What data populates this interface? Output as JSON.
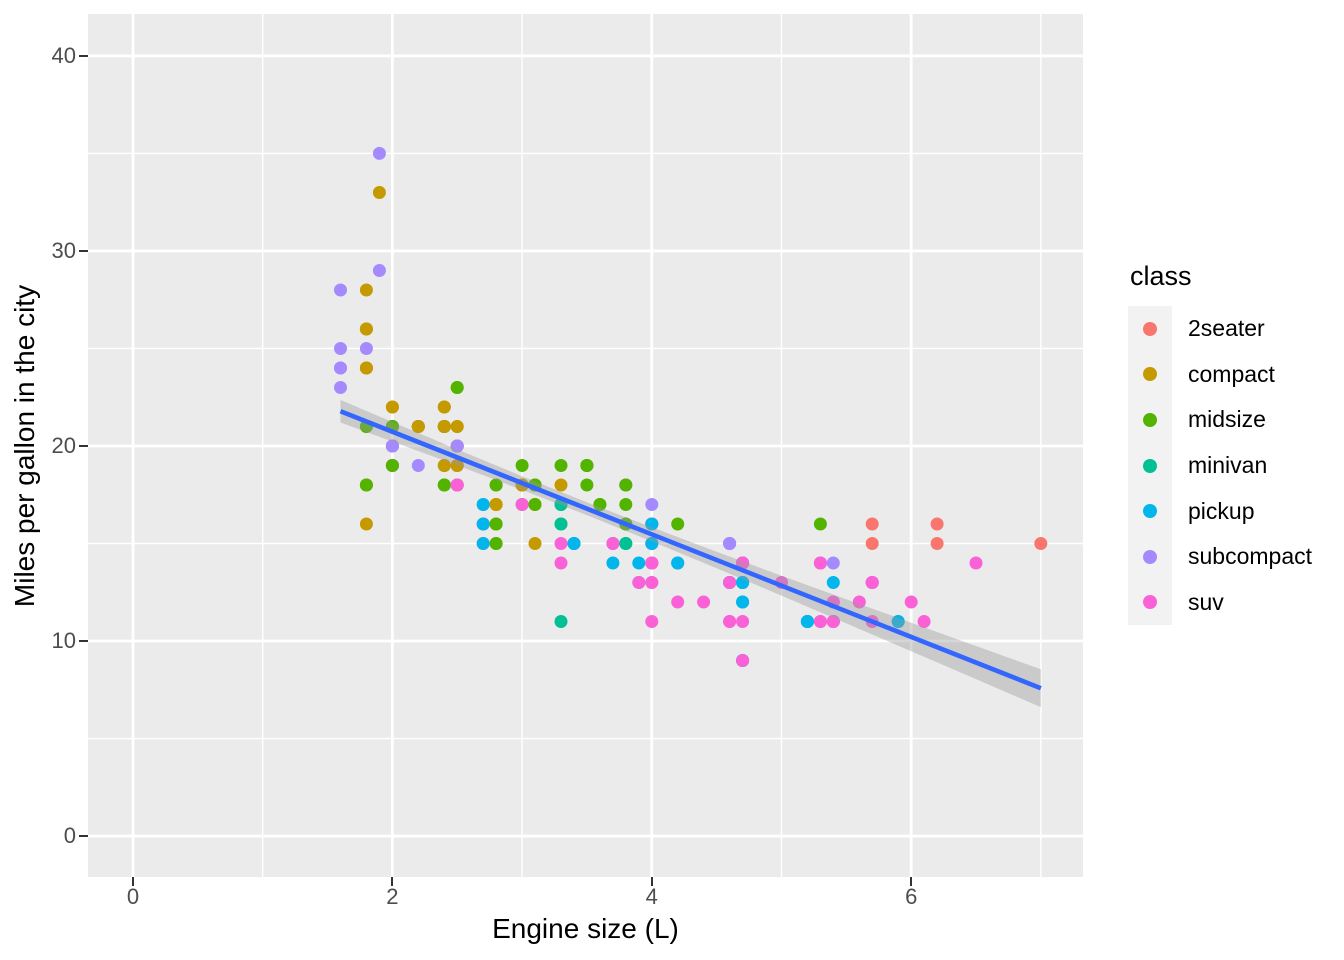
{
  "x_axis": {
    "title": "Engine size (L)",
    "ticks": [
      0,
      2,
      4,
      6
    ],
    "minor": [
      1,
      3,
      5,
      7
    ]
  },
  "y_axis": {
    "title": "Miles per gallon in the city",
    "ticks": [
      0,
      10,
      20,
      30,
      40
    ],
    "minor": [
      5,
      15,
      25,
      35
    ]
  },
  "legend": {
    "title": "class",
    "items": [
      {
        "label": "2seater",
        "color": "#F8766D"
      },
      {
        "label": "compact",
        "color": "#C49A00"
      },
      {
        "label": "midsize",
        "color": "#53B400"
      },
      {
        "label": "minivan",
        "color": "#00C094"
      },
      {
        "label": "pickup",
        "color": "#00B6EB"
      },
      {
        "label": "subcompact",
        "color": "#A58AFF"
      },
      {
        "label": "suv",
        "color": "#FB61D7"
      }
    ]
  },
  "style_colors": {
    "panel_bg": "#EBEBEB",
    "grid": "#FFFFFF",
    "axis_text": "#4D4D4D",
    "tick_mark": "#333333",
    "legend_key_bg": "#F2F2F2",
    "smooth_line": "#3366FF",
    "ribbon": "#999999"
  },
  "chart_data": {
    "type": "scatter",
    "title": "",
    "xlabel": "Engine size (L)",
    "ylabel": "Miles per gallon in the city",
    "x_field": "engine displacement (litres)",
    "y_field": "city miles per gallon",
    "color_field": "class",
    "xlim": [
      -0.347,
      7.325
    ],
    "ylim": [
      -2.1,
      42.15
    ],
    "grid": true,
    "legend_position": "right",
    "classes": [
      "2seater",
      "compact",
      "midsize",
      "minivan",
      "pickup",
      "subcompact",
      "suv"
    ],
    "colors": [
      "#F8766D",
      "#C49A00",
      "#53B400",
      "#00C094",
      "#00B6EB",
      "#A58AFF",
      "#FB61D7"
    ],
    "point_format": "[displ, cty, class_index] in dataset draw order",
    "points": [
      [
        1.8,
        18,
        1
      ],
      [
        1.8,
        21,
        1
      ],
      [
        2.0,
        20,
        1
      ],
      [
        2.0,
        21,
        1
      ],
      [
        2.8,
        16,
        1
      ],
      [
        2.8,
        18,
        1
      ],
      [
        3.1,
        18,
        1
      ],
      [
        1.8,
        18,
        1
      ],
      [
        1.8,
        16,
        1
      ],
      [
        2.0,
        20,
        1
      ],
      [
        2.0,
        19,
        1
      ],
      [
        2.8,
        15,
        1
      ],
      [
        2.8,
        17,
        1
      ],
      [
        3.1,
        17,
        1
      ],
      [
        3.1,
        15,
        1
      ],
      [
        2.8,
        15,
        2
      ],
      [
        3.1,
        17,
        2
      ],
      [
        4.2,
        16,
        2
      ],
      [
        5.3,
        14,
        6
      ],
      [
        5.3,
        11,
        6
      ],
      [
        5.3,
        14,
        6
      ],
      [
        5.7,
        13,
        6
      ],
      [
        6.0,
        12,
        6
      ],
      [
        5.7,
        16,
        0
      ],
      [
        5.7,
        15,
        0
      ],
      [
        6.2,
        16,
        0
      ],
      [
        6.2,
        15,
        0
      ],
      [
        7.0,
        15,
        0
      ],
      [
        5.3,
        14,
        6
      ],
      [
        5.3,
        11,
        6
      ],
      [
        5.7,
        11,
        6
      ],
      [
        6.5,
        14,
        6
      ],
      [
        2.4,
        19,
        2
      ],
      [
        2.4,
        22,
        2
      ],
      [
        3.1,
        18,
        2
      ],
      [
        3.5,
        18,
        2
      ],
      [
        3.6,
        17,
        2
      ],
      [
        2.4,
        18,
        3
      ],
      [
        3.0,
        17,
        3
      ],
      [
        3.3,
        16,
        3
      ],
      [
        3.3,
        16,
        3
      ],
      [
        3.3,
        17,
        3
      ],
      [
        3.3,
        17,
        3
      ],
      [
        3.3,
        11,
        3
      ],
      [
        3.8,
        15,
        3
      ],
      [
        3.8,
        15,
        3
      ],
      [
        3.8,
        16,
        3
      ],
      [
        4.0,
        16,
        3
      ],
      [
        3.7,
        15,
        4
      ],
      [
        3.7,
        14,
        4
      ],
      [
        3.9,
        13,
        4
      ],
      [
        3.9,
        14,
        4
      ],
      [
        4.7,
        14,
        4
      ],
      [
        4.7,
        14,
        4
      ],
      [
        4.7,
        9,
        4
      ],
      [
        5.2,
        11,
        4
      ],
      [
        5.2,
        11,
        4
      ],
      [
        3.9,
        13,
        6
      ],
      [
        4.7,
        13,
        6
      ],
      [
        4.7,
        9,
        6
      ],
      [
        4.7,
        13,
        6
      ],
      [
        5.2,
        11,
        6
      ],
      [
        5.7,
        13,
        6
      ],
      [
        5.9,
        11,
        6
      ],
      [
        4.7,
        12,
        4
      ],
      [
        4.7,
        9,
        4
      ],
      [
        4.7,
        13,
        4
      ],
      [
        4.7,
        13,
        4
      ],
      [
        4.7,
        12,
        4
      ],
      [
        4.7,
        13,
        4
      ],
      [
        5.2,
        11,
        4
      ],
      [
        5.2,
        11,
        4
      ],
      [
        5.7,
        13,
        4
      ],
      [
        5.9,
        11,
        4
      ],
      [
        4.6,
        11,
        6
      ],
      [
        5.4,
        11,
        6
      ],
      [
        5.4,
        12,
        6
      ],
      [
        4.0,
        14,
        6
      ],
      [
        4.0,
        15,
        6
      ],
      [
        4.0,
        14,
        6
      ],
      [
        4.0,
        13,
        6
      ],
      [
        4.6,
        13,
        6
      ],
      [
        4.0,
        14,
        6
      ],
      [
        4.2,
        14,
        4
      ],
      [
        4.2,
        14,
        4
      ],
      [
        4.6,
        13,
        4
      ],
      [
        4.6,
        13,
        4
      ],
      [
        4.6,
        13,
        4
      ],
      [
        5.4,
        11,
        4
      ],
      [
        5.4,
        13,
        4
      ],
      [
        3.8,
        18,
        5
      ],
      [
        3.8,
        18,
        5
      ],
      [
        4.0,
        17,
        5
      ],
      [
        4.0,
        16,
        5
      ],
      [
        4.6,
        15,
        5
      ],
      [
        4.6,
        15,
        5
      ],
      [
        4.6,
        15,
        5
      ],
      [
        4.6,
        15,
        5
      ],
      [
        5.4,
        14,
        5
      ],
      [
        1.6,
        28,
        5
      ],
      [
        1.6,
        24,
        5
      ],
      [
        1.6,
        25,
        5
      ],
      [
        1.6,
        23,
        5
      ],
      [
        1.6,
        24,
        5
      ],
      [
        1.8,
        26,
        5
      ],
      [
        1.8,
        25,
        5
      ],
      [
        1.8,
        24,
        5
      ],
      [
        2.0,
        21,
        5
      ],
      [
        2.4,
        18,
        2
      ],
      [
        2.4,
        18,
        2
      ],
      [
        2.4,
        21,
        2
      ],
      [
        2.4,
        21,
        2
      ],
      [
        2.5,
        18,
        2
      ],
      [
        2.5,
        18,
        2
      ],
      [
        3.3,
        19,
        2
      ],
      [
        2.0,
        19,
        5
      ],
      [
        2.0,
        19,
        5
      ],
      [
        2.0,
        20,
        5
      ],
      [
        2.0,
        20,
        5
      ],
      [
        2.0,
        20,
        5
      ],
      [
        2.7,
        17,
        5
      ],
      [
        2.7,
        16,
        5
      ],
      [
        3.0,
        17,
        6
      ],
      [
        3.7,
        15,
        6
      ],
      [
        4.0,
        15,
        6
      ],
      [
        4.7,
        14,
        6
      ],
      [
        4.7,
        9,
        6
      ],
      [
        4.7,
        14,
        6
      ],
      [
        5.7,
        13,
        6
      ],
      [
        6.1,
        11,
        6
      ],
      [
        4.0,
        11,
        6
      ],
      [
        4.2,
        12,
        6
      ],
      [
        4.4,
        12,
        6
      ],
      [
        4.6,
        11,
        6
      ],
      [
        5.4,
        11,
        6
      ],
      [
        5.4,
        11,
        6
      ],
      [
        5.4,
        12,
        6
      ],
      [
        4.0,
        14,
        6
      ],
      [
        4.0,
        13,
        6
      ],
      [
        4.6,
        13,
        6
      ],
      [
        5.0,
        13,
        6
      ],
      [
        2.4,
        21,
        1
      ],
      [
        2.4,
        19,
        1
      ],
      [
        2.5,
        23,
        2
      ],
      [
        2.5,
        23,
        2
      ],
      [
        3.5,
        19,
        2
      ],
      [
        3.5,
        19,
        2
      ],
      [
        3.0,
        18,
        2
      ],
      [
        3.0,
        19,
        2
      ],
      [
        3.5,
        19,
        2
      ],
      [
        3.3,
        14,
        6
      ],
      [
        3.3,
        15,
        6
      ],
      [
        4.0,
        14,
        6
      ],
      [
        5.6,
        12,
        6
      ],
      [
        3.1,
        18,
        2
      ],
      [
        3.8,
        16,
        2
      ],
      [
        3.8,
        17,
        2
      ],
      [
        3.8,
        18,
        2
      ],
      [
        5.3,
        16,
        2
      ],
      [
        2.5,
        18,
        6
      ],
      [
        2.5,
        18,
        6
      ],
      [
        2.5,
        20,
        6
      ],
      [
        2.5,
        19,
        6
      ],
      [
        2.5,
        18,
        6
      ],
      [
        2.5,
        18,
        6
      ],
      [
        2.2,
        21,
        5
      ],
      [
        2.2,
        19,
        5
      ],
      [
        2.5,
        19,
        5
      ],
      [
        2.5,
        19,
        5
      ],
      [
        2.5,
        20,
        1
      ],
      [
        2.5,
        20,
        1
      ],
      [
        2.5,
        19,
        1
      ],
      [
        2.5,
        20,
        1
      ],
      [
        2.7,
        15,
        6
      ],
      [
        2.7,
        16,
        6
      ],
      [
        3.4,
        15,
        6
      ],
      [
        3.4,
        15,
        6
      ],
      [
        4.0,
        16,
        6
      ],
      [
        4.7,
        14,
        6
      ],
      [
        2.2,
        21,
        2
      ],
      [
        2.2,
        21,
        2
      ],
      [
        2.4,
        21,
        2
      ],
      [
        2.4,
        21,
        2
      ],
      [
        3.0,
        18,
        2
      ],
      [
        3.0,
        18,
        2
      ],
      [
        3.5,
        19,
        2
      ],
      [
        2.2,
        21,
        1
      ],
      [
        2.2,
        21,
        1
      ],
      [
        2.4,
        21,
        1
      ],
      [
        2.4,
        22,
        1
      ],
      [
        3.0,
        18,
        1
      ],
      [
        3.0,
        18,
        1
      ],
      [
        3.3,
        18,
        1
      ],
      [
        1.8,
        24,
        1
      ],
      [
        1.8,
        24,
        1
      ],
      [
        1.8,
        26,
        1
      ],
      [
        1.8,
        28,
        1
      ],
      [
        1.8,
        26,
        1
      ],
      [
        4.7,
        11,
        6
      ],
      [
        5.7,
        13,
        6
      ],
      [
        2.7,
        15,
        4
      ],
      [
        2.7,
        16,
        4
      ],
      [
        2.7,
        17,
        4
      ],
      [
        3.4,
        15,
        4
      ],
      [
        3.4,
        15,
        4
      ],
      [
        4.0,
        15,
        4
      ],
      [
        4.0,
        16,
        4
      ],
      [
        2.0,
        21,
        1
      ],
      [
        2.0,
        19,
        1
      ],
      [
        2.0,
        21,
        1
      ],
      [
        2.0,
        22,
        1
      ],
      [
        2.8,
        17,
        1
      ],
      [
        1.9,
        33,
        1
      ],
      [
        2.0,
        21,
        1
      ],
      [
        2.0,
        19,
        1
      ],
      [
        2.0,
        22,
        1
      ],
      [
        2.0,
        21,
        1
      ],
      [
        2.5,
        21,
        1
      ],
      [
        2.5,
        21,
        1
      ],
      [
        2.8,
        16,
        1
      ],
      [
        2.8,
        17,
        1
      ],
      [
        1.9,
        35,
        5
      ],
      [
        1.9,
        29,
        5
      ],
      [
        2.0,
        21,
        5
      ],
      [
        2.0,
        19,
        5
      ],
      [
        2.5,
        20,
        5
      ],
      [
        2.5,
        20,
        5
      ],
      [
        1.8,
        21,
        2
      ],
      [
        1.8,
        18,
        2
      ],
      [
        2.0,
        19,
        2
      ],
      [
        2.0,
        21,
        2
      ],
      [
        2.8,
        16,
        2
      ],
      [
        2.8,
        18,
        2
      ],
      [
        3.6,
        17,
        2
      ]
    ],
    "smooth": {
      "method": "lm",
      "se": true,
      "color": "#3366FF",
      "intercept": 25.99,
      "slope": -2.63,
      "x_start": 1.6,
      "x_end": 7.0,
      "ci": {
        "x": [
          1.6,
          2.0,
          2.5,
          3.0,
          3.5,
          4.0,
          4.5,
          5.0,
          5.5,
          6.0,
          6.5,
          7.0
        ],
        "half_width": [
          0.58,
          0.5,
          0.41,
          0.35,
          0.33,
          0.36,
          0.42,
          0.51,
          0.62,
          0.73,
          0.85,
          0.97
        ]
      }
    }
  }
}
